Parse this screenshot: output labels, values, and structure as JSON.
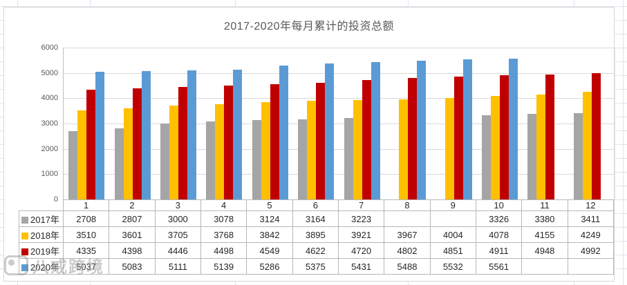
{
  "watermark": {
    "text": "八戒跨境"
  },
  "chart_data": {
    "type": "bar",
    "title": "2017-2020年每月累计的投资总额",
    "categories": [
      "1",
      "2",
      "3",
      "4",
      "5",
      "6",
      "7",
      "8",
      "9",
      "10",
      "11",
      "12"
    ],
    "series": [
      {
        "name": "2017年",
        "color": "#A5A5A5",
        "values": [
          2708,
          2807,
          3000,
          3078,
          3124,
          3164,
          3223,
          null,
          null,
          3326,
          3380,
          3411
        ]
      },
      {
        "name": "2018年",
        "color": "#FFC000",
        "values": [
          3510,
          3601,
          3705,
          3768,
          3842,
          3895,
          3921,
          3967,
          4004,
          4078,
          4155,
          4249
        ]
      },
      {
        "name": "2019年",
        "color": "#C00000",
        "values": [
          4335,
          4398,
          4446,
          4498,
          4549,
          4622,
          4720,
          4802,
          4851,
          4911,
          4948,
          4992
        ]
      },
      {
        "name": "2020年",
        "color": "#5B9BD5",
        "values": [
          5037,
          5083,
          5111,
          5139,
          5286,
          5375,
          5431,
          5488,
          5532,
          5561,
          null,
          null
        ]
      }
    ],
    "y_axis": {
      "min": 0,
      "max": 6000,
      "step": 1000,
      "ticks": [
        "0",
        "1000",
        "2000",
        "3000",
        "4000",
        "5000",
        "6000"
      ]
    },
    "xlabel": "",
    "ylabel": "",
    "grid": true,
    "legend_position": "data-table",
    "data_table": true,
    "colors": {
      "gridline": "#d9d9d9",
      "axis": "#bfbfbf",
      "table_border": "#b7b7b7",
      "title_text": "#595959"
    }
  }
}
